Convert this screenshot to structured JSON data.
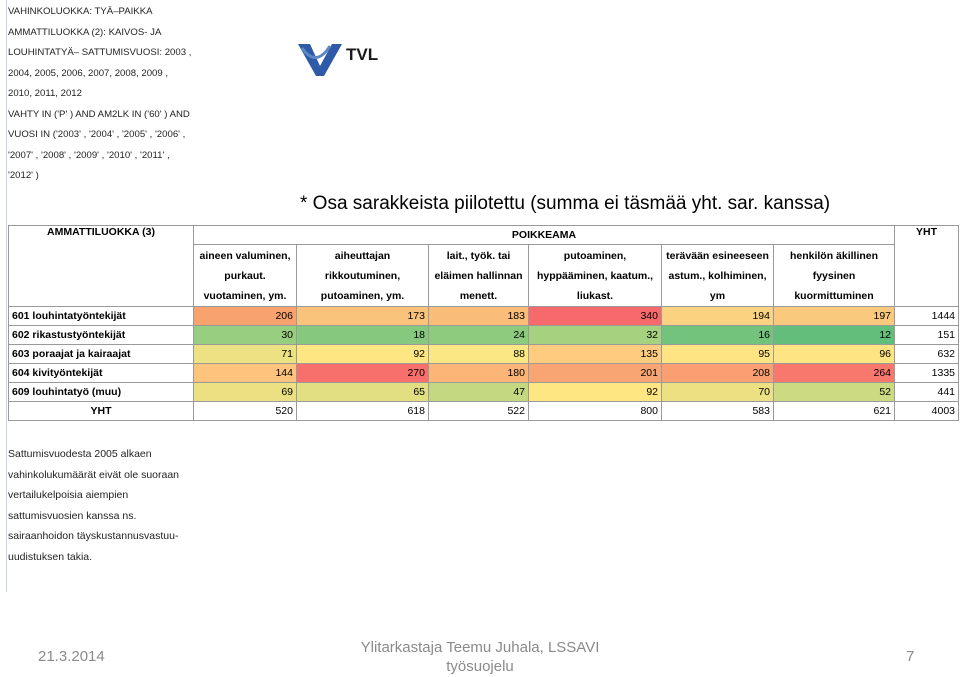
{
  "filter_text": [
    "VAHINKOLUOKKA: TYÄ–PAIKKA",
    "AMMATTILUOKKA (2): KAIVOS- JA",
    "LOUHINTATYÄ– SATTUMISVUOSI: 2003 ,",
    "2004, 2005, 2006, 2007, 2008, 2009 ,",
    "2010, 2011, 2012",
    "VAHTY IN ('P' ) AND AM2LK IN ('60' ) AND",
    "VUOSI IN ('2003' , '2004' , '2005' , '2006' ,",
    "'2007' , '2008' , '2009' , '2010' , '2011' ,",
    "'2012' )"
  ],
  "logo": {
    "text": "TVL",
    "colors": {
      "mark": "#2e5aa8",
      "text": "#1a1a1a"
    }
  },
  "note": "* Osa sarakkeista piilote­ttu (summa ei täsmää yht. sar.  kanssa)",
  "table": {
    "row_header": "AMMATTILUOKKA (3)",
    "group_header": "POIKKEAMA",
    "total_header": "YHT",
    "columns": [
      "aineen valuminen, purkaut. vuotaminen, ym.",
      "aiheuttajan rikkoutuminen, putoaminen, ym.",
      "lait., työk. tai eläimen hallinnan menett.",
      "putoaminen, hyppääminen, kaatum., liukast.",
      "terävään esineeseen astum., kolhiminen, ym",
      "henkilön äkillinen fyysinen kuormittuminen"
    ],
    "rows": [
      {
        "label": "601 louhintatyöntekijät",
        "values": [
          "206",
          "173",
          "183",
          "340",
          "194",
          "197"
        ],
        "total": "1444",
        "colors": [
          "#f8a36e",
          "#f9c37c",
          "#f9bc79",
          "#f8696b",
          "#fbd27f",
          "#f9c97e"
        ]
      },
      {
        "label": "602 rikastustyöntekijät",
        "values": [
          "30",
          "18",
          "24",
          "32",
          "16",
          "12"
        ],
        "total": "151",
        "colors": [
          "#98ce7f",
          "#86c97e",
          "#8fcb7e",
          "#a6d27f",
          "#73c37c",
          "#63be7b"
        ]
      },
      {
        "label": "603 poraajat ja kairaajat",
        "values": [
          "71",
          "92",
          "88",
          "135",
          "95",
          "96"
        ],
        "total": "632",
        "colors": [
          "#ede283",
          "#fee682",
          "#fbe783",
          "#fecb7f",
          "#fee482",
          "#fee482"
        ]
      },
      {
        "label": "604 kivityöntekijät",
        "values": [
          "144",
          "270",
          "180",
          "201",
          "208",
          "264"
        ],
        "total": "1335",
        "colors": [
          "#fec37c",
          "#f8706b",
          "#fbb577",
          "#f9a573",
          "#f99f71",
          "#f8786e"
        ]
      },
      {
        "label": "609 louhintatyö (muu)",
        "values": [
          "69",
          "65",
          "47",
          "92",
          "70",
          "52"
        ],
        "total": "441",
        "colors": [
          "#ebe183",
          "#e2df82",
          "#c4d881",
          "#fee682",
          "#ebe183",
          "#ccda81"
        ]
      }
    ],
    "total_row": {
      "label": "YHT",
      "values": [
        "520",
        "618",
        "522",
        "800",
        "583",
        "621"
      ],
      "total": "4003"
    }
  },
  "caption": [
    "Sattumisvuodesta 2005 alkaen",
    "vahinkolukumäärät eivät ole suoraan",
    "vertailukelpoisia aiempien",
    "sattumisvuosien kanssa ns.",
    "sairaanhoidon täyskustannusvastuu-",
    "uudistuksen takia."
  ],
  "footer": {
    "date": "21.3.2014",
    "author_line1": "Ylitarkastaja Teemu Juhala, LSSAVI",
    "author_line2": "työsuojelu",
    "page": "7"
  }
}
